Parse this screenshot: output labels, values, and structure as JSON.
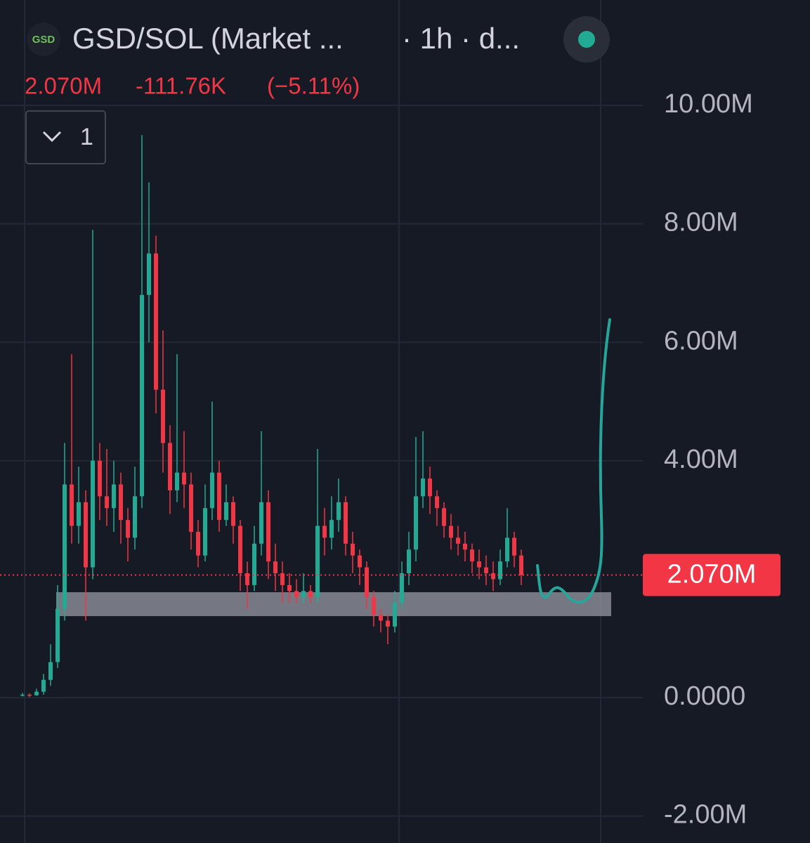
{
  "chart_data": {
    "type": "candlestick",
    "logo": "GSD",
    "title": "GSD/SOL (Market ...",
    "subtitle": "· 1h · d...",
    "last_price": {
      "value": 2070000,
      "label": "2.070M"
    },
    "change": {
      "value": -111760,
      "label": "-111.76K"
    },
    "change_percent": {
      "value": -5.11,
      "label": "(−5.11%)"
    },
    "collapsed_indicators": 1,
    "up_color": "#22ab94",
    "down_color": "#f23645",
    "ylim": [
      -2455000,
      11780000
    ],
    "yticks": [
      {
        "value": 10000000,
        "label": "10.00M"
      },
      {
        "value": 8000000,
        "label": "8.00M"
      },
      {
        "value": 6000000,
        "label": "6.00M"
      },
      {
        "value": 4000000,
        "label": "4.00M"
      },
      {
        "value": 0,
        "label": "0.0000"
      },
      {
        "value": -2000000,
        "label": "-2.00M"
      }
    ],
    "grid": true,
    "support_zone": [
      1376000,
      1780000
    ],
    "ohlc": [
      [
        40000,
        80000,
        20000,
        50000
      ],
      [
        50000,
        70000,
        10000,
        40000
      ],
      [
        40000,
        150000,
        30000,
        100000
      ],
      [
        100000,
        400000,
        50000,
        300000
      ],
      [
        300000,
        900000,
        200000,
        600000
      ],
      [
        600000,
        1900000,
        500000,
        1500000
      ],
      [
        1500000,
        4300000,
        1300000,
        3600000
      ],
      [
        3600000,
        5800000,
        2600000,
        2900000
      ],
      [
        2900000,
        3900000,
        2600000,
        3300000
      ],
      [
        3300000,
        3500000,
        1300000,
        2200000
      ],
      [
        2200000,
        7900000,
        2000000,
        4000000
      ],
      [
        4000000,
        4300000,
        3000000,
        3400000
      ],
      [
        3400000,
        4200000,
        2900000,
        3200000
      ],
      [
        3200000,
        4000000,
        2800000,
        3600000
      ],
      [
        3600000,
        3800000,
        2600000,
        3000000
      ],
      [
        3000000,
        3200000,
        2300000,
        2700000
      ],
      [
        2700000,
        3900000,
        2500000,
        3400000
      ],
      [
        3400000,
        9500000,
        3200000,
        6800000
      ],
      [
        6800000,
        8700000,
        6000000,
        7500000
      ],
      [
        7500000,
        7800000,
        4800000,
        5200000
      ],
      [
        5200000,
        6200000,
        3800000,
        4300000
      ],
      [
        4300000,
        4600000,
        3100000,
        3500000
      ],
      [
        3500000,
        5800000,
        3300000,
        3800000
      ],
      [
        3800000,
        4500000,
        3200000,
        3600000
      ],
      [
        3600000,
        3800000,
        2500000,
        2800000
      ],
      [
        2800000,
        3000000,
        2200000,
        2400000
      ],
      [
        2400000,
        3600000,
        2300000,
        3200000
      ],
      [
        3200000,
        5000000,
        3000000,
        3800000
      ],
      [
        3800000,
        4000000,
        2800000,
        3000000
      ],
      [
        3000000,
        3600000,
        2900000,
        3300000
      ],
      [
        3300000,
        3400000,
        2600000,
        2900000
      ],
      [
        2900000,
        3000000,
        1800000,
        2100000
      ],
      [
        2100000,
        2300000,
        1500000,
        1900000
      ],
      [
        1900000,
        2900000,
        1800000,
        2600000
      ],
      [
        2600000,
        4500000,
        2400000,
        3300000
      ],
      [
        3300000,
        3500000,
        2000000,
        2300000
      ],
      [
        2300000,
        2600000,
        1800000,
        2100000
      ],
      [
        2100000,
        2300000,
        1600000,
        1900000
      ],
      [
        1900000,
        2100000,
        1600000,
        1800000
      ],
      [
        1800000,
        2000000,
        1600000,
        1700000
      ],
      [
        1700000,
        2100000,
        1600000,
        1800000
      ],
      [
        1800000,
        1900000,
        1600000,
        1700000
      ],
      [
        1700000,
        4200000,
        1600000,
        2900000
      ],
      [
        2900000,
        3200000,
        2400000,
        2700000
      ],
      [
        2700000,
        3400000,
        2500000,
        3000000
      ],
      [
        3000000,
        3700000,
        2800000,
        3300000
      ],
      [
        3300000,
        3400000,
        2400000,
        2600000
      ],
      [
        2600000,
        2800000,
        2100000,
        2400000
      ],
      [
        2400000,
        2500000,
        1900000,
        2200000
      ],
      [
        2200000,
        2300000,
        1500000,
        1700000
      ],
      [
        1700000,
        1800000,
        1200000,
        1400000
      ],
      [
        1400000,
        1500000,
        1100000,
        1300000
      ],
      [
        1300000,
        1400000,
        900000,
        1200000
      ],
      [
        1200000,
        1800000,
        1100000,
        1600000
      ],
      [
        1600000,
        2300000,
        1500000,
        2100000
      ],
      [
        2100000,
        2800000,
        1900000,
        2500000
      ],
      [
        2500000,
        4400000,
        2300000,
        3400000
      ],
      [
        3400000,
        4500000,
        3200000,
        3700000
      ],
      [
        3700000,
        3900000,
        3100000,
        3400000
      ],
      [
        3400000,
        3500000,
        2900000,
        3200000
      ],
      [
        3200000,
        3300000,
        2700000,
        2900000
      ],
      [
        2900000,
        3100000,
        2500000,
        2700000
      ],
      [
        2700000,
        2900000,
        2400000,
        2600000
      ],
      [
        2600000,
        2800000,
        2300000,
        2500000
      ],
      [
        2500000,
        2600000,
        2100000,
        2300000
      ],
      [
        2300000,
        2500000,
        2000000,
        2200000
      ],
      [
        2200000,
        2400000,
        1900000,
        2100000
      ],
      [
        2100000,
        2300000,
        1800000,
        2000000
      ],
      [
        2000000,
        2500000,
        1900000,
        2300000
      ],
      [
        2300000,
        3200000,
        2200000,
        2700000
      ],
      [
        2700000,
        2800000,
        2200000,
        2400000
      ],
      [
        2400000,
        2500000,
        1900000,
        2070000
      ]
    ]
  }
}
